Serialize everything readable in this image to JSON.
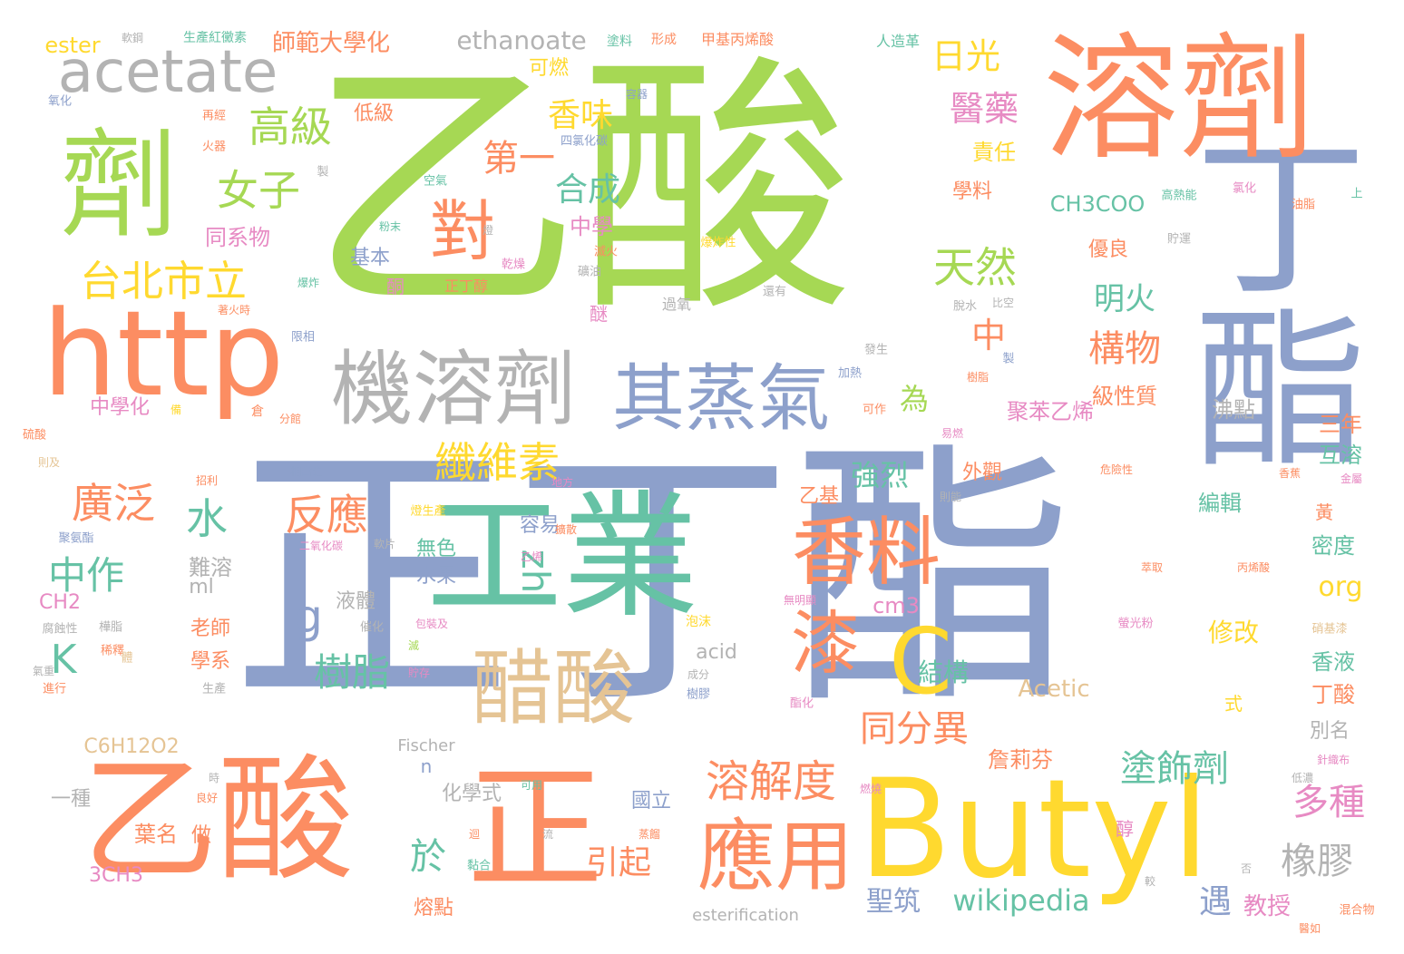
{
  "colors": {
    "green": "#a6d854",
    "blue": "#8da0cb",
    "orange": "#fc8d62",
    "teal": "#66c2a5",
    "yellow": "#ffd92f",
    "pink": "#e78ac3",
    "gray": "#b3b3b3",
    "tan": "#e5c494"
  },
  "words": {
    "w001": "乙酸",
    "w002": "丁酯",
    "w003": "正丁酯",
    "w004": "溶劑",
    "w005": "劑",
    "w006": "acetate",
    "w007": "http",
    "w008": "機溶劑",
    "w009": "其蒸氣",
    "w010": "工業",
    "w011": "乙酸",
    "w012": "正",
    "w013": "Butyl",
    "w014": "醋酸",
    "w015": "香料",
    "w016": "漆",
    "w017": "C",
    "w018": "應用",
    "w019": "對",
    "w020": "高級",
    "w021": "女子",
    "w022": "台北市立",
    "w023": "天然",
    "w024": "日光",
    "w025": "醫藥",
    "w026": "ethanoate",
    "w027": "師範大學化",
    "w028": "ester",
    "w029": "第一",
    "w030": "香味",
    "w031": "合成",
    "w032": "纖維素",
    "w033": "反應",
    "w034": "廣泛",
    "w035": "水",
    "w036": "中作",
    "w037": "K",
    "w038": "g",
    "w039": "zh",
    "w040": "樹脂",
    "w041": "為",
    "w042": "中",
    "w043": "構物",
    "w044": "明火",
    "w045": "溶解度",
    "w046": "同分異",
    "w047": "塗飾劑",
    "w048": "多種",
    "w049": "橡膠",
    "w050": "wikipedia",
    "w051": "於",
    "w052": "引起",
    "w053": "聖筑",
    "w054": "遇",
    "w055": "教授",
    "w056": "強烈",
    "w057": "結構",
    "w058": "org",
    "w059": "修改",
    "w060": "CH3COO",
    "w061": "可燃",
    "w062": "中學",
    "w063": "基本",
    "w064": "同系物",
    "w065": "低級",
    "w066": "聚苯乙烯",
    "w067": "沸點",
    "w068": "三年",
    "w069": "互溶",
    "w070": "級性質",
    "w071": "優良",
    "w072": "學料",
    "w073": "責任",
    "w074": "編輯",
    "w075": "密度",
    "w076": "香液",
    "w077": "丁酸",
    "w078": "別名",
    "w079": "Acetic",
    "w080": "詹莉芬",
    "w081": "外觀",
    "w082": "乙基",
    "w083": "容易",
    "w084": "無色",
    "w085": "水果",
    "w086": "液體",
    "w087": "難溶",
    "w088": "ml",
    "w089": "老師",
    "w090": "學系",
    "w091": "中學化",
    "w092": "CH2",
    "w093": "C6H12O2",
    "w094": "葉名",
    "w095": "做",
    "w096": "3CH3",
    "w097": "化學式",
    "w098": "國立",
    "w099": "熔點",
    "w100": "cm3",
    "w101": "acid",
    "w102": "n",
    "w103": "一種",
    "w104": "Fischer",
    "w105": "esterification",
    "w106": "醇",
    "w107": "黃",
    "w108": "式",
    "w109": "醚",
    "w110": "酮",
    "w111": "正丁醇",
    "w112": "過氧",
    "w113": "人造革",
    "w114": "甲基丙烯酸",
    "w115": "形成",
    "w116": "塗料",
    "w117": "生產紅黴素",
    "w118": "軟鋼",
    "w119": "氧化",
    "w120": "再經",
    "w121": "火器",
    "w122": "四氯化碳",
    "w123": "容器",
    "w124": "空氣",
    "w125": "粉末",
    "w126": "乾燥",
    "w127": "爆炸性",
    "w128": "滅火",
    "w129": "礦油",
    "w130": "燈",
    "w131": "高熱能",
    "w132": "氯化",
    "w133": "油脂",
    "w134": "上",
    "w135": "貯運",
    "w136": "製",
    "w137": "爆炸",
    "w138": "著火時",
    "w139": "限相",
    "w140": "硫酸",
    "w141": "備",
    "w142": "倉",
    "w143": "分館",
    "w144": "加熱",
    "w145": "可作",
    "w146": "發生",
    "w147": "樹脂",
    "w148": "脫水",
    "w149": "比空",
    "w150": "還有",
    "w151": "易燃",
    "w152": "危險性",
    "w153": "香蕉",
    "w154": "金屬",
    "w155": "則及",
    "w156": "招利",
    "w157": "相當這",
    "w158": "地方",
    "w159": "燈生產",
    "w160": "二氧化碳",
    "w161": "軟片",
    "w162": "聚氨酯",
    "w163": "樺脂",
    "w164": "腐蝕性",
    "w165": "催化",
    "w166": "包裝及",
    "w167": "泡沫",
    "w168": "無明顯",
    "w169": "螢光粉",
    "w170": "萃取",
    "w171": "丙烯酸",
    "w172": "硝基漆",
    "w173": "稀釋",
    "w174": "氣重",
    "w175": "生產",
    "w176": "貯存",
    "w177": "進行",
    "w178": "滅",
    "w179": "成分",
    "w180": "樹膠",
    "w181": "酯化",
    "w182": "針織布",
    "w183": "低濃",
    "w184": "良好",
    "w185": "時",
    "w186": "可用",
    "w187": "燃燒",
    "w188": "迴",
    "w189": "流",
    "w190": "黏合",
    "w191": "蒸餾",
    "w192": "否",
    "w193": "較",
    "w194": "醫如",
    "w195": "混合物",
    "w196": "乙烯",
    "w197": "擴散",
    "w198": "則能",
    "w199": "體",
    "w200": "製"
  }
}
